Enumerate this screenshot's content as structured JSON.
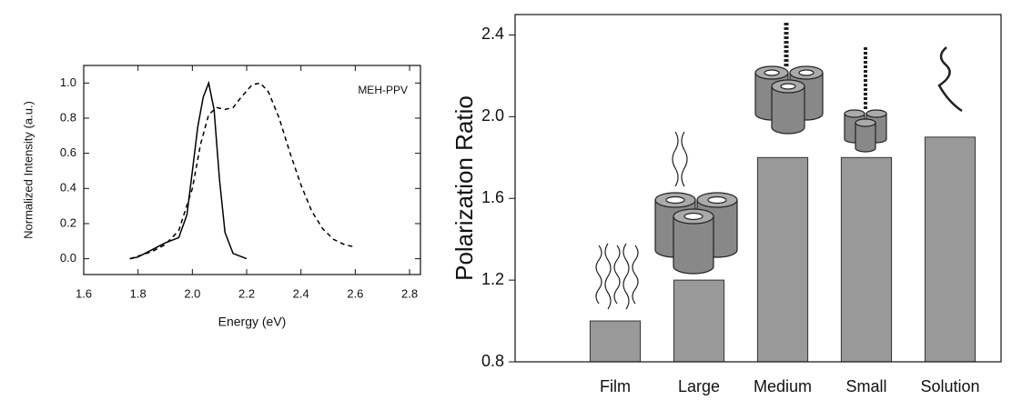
{
  "chart_data": [
    {
      "type": "line",
      "y_label": "Normalized Intensity (a.u.)",
      "x_label": "Energy (eV)",
      "annotation": "MEH-PPV",
      "xlim": [
        1.6,
        2.84
      ],
      "ylim": [
        -0.09,
        1.1
      ],
      "xticks": [
        1.6,
        1.8,
        {
          "value": 2,
          "label": "2.0"
        },
        2.2,
        2.4,
        2.6,
        2.8
      ],
      "yticks": [
        {
          "value": 0,
          "label": "0.0"
        },
        0.2,
        0.4,
        0.6,
        0.8,
        {
          "value": 1,
          "label": "1.0"
        }
      ],
      "series": [
        {
          "color": "#000000",
          "style": "solid",
          "x": [
            1.77,
            1.8,
            1.85,
            1.9,
            1.95,
            1.98,
            2.0,
            2.02,
            2.04,
            2.06,
            2.08,
            2.1,
            2.12,
            2.15,
            2.2
          ],
          "values": [
            0.0,
            0.01,
            0.05,
            0.09,
            0.12,
            0.25,
            0.5,
            0.75,
            0.92,
            1.0,
            0.85,
            0.45,
            0.15,
            0.03,
            0.0
          ]
        },
        {
          "color": "#000000",
          "style": "dashed",
          "x": [
            1.77,
            1.85,
            1.9,
            1.95,
            2.0,
            2.03,
            2.06,
            2.09,
            2.12,
            2.15,
            2.18,
            2.22,
            2.25,
            2.28,
            2.32,
            2.36,
            2.4,
            2.44,
            2.48,
            2.52,
            2.56,
            2.59
          ],
          "values": [
            0.0,
            0.04,
            0.08,
            0.16,
            0.4,
            0.65,
            0.82,
            0.86,
            0.85,
            0.86,
            0.92,
            0.99,
            1.0,
            0.95,
            0.8,
            0.6,
            0.42,
            0.27,
            0.17,
            0.11,
            0.08,
            0.07
          ]
        }
      ]
    },
    {
      "type": "bar",
      "y_label": "Polarization Ratio",
      "categories": [
        "Film",
        "Large",
        "Medium",
        "Small",
        "Solution"
      ],
      "values": [
        1.0,
        1.2,
        1.8,
        1.8,
        1.9
      ],
      "color": "#999999",
      "ylim": [
        0.8,
        2.5
      ],
      "yticks": [
        0.8,
        1.2,
        1.6,
        {
          "value": 2,
          "label": "2.0"
        },
        2.4
      ]
    }
  ]
}
